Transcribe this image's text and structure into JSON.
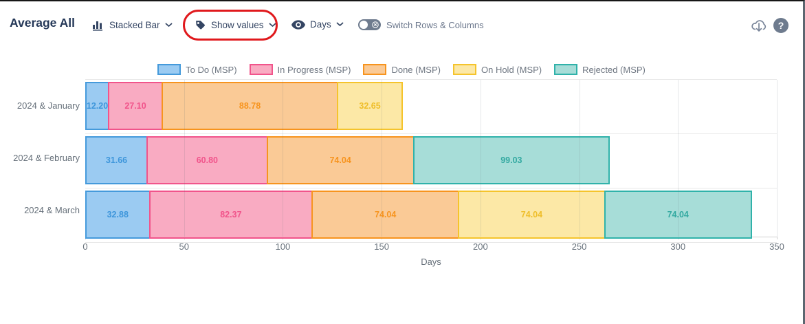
{
  "header": {
    "title": "Average All",
    "controls": [
      {
        "id": "chart-type",
        "label": "Stacked Bar",
        "icon": "bar-chart-icon"
      },
      {
        "id": "show-values",
        "label": "Show values",
        "icon": "tag-icon",
        "annotated": true
      },
      {
        "id": "measure-unit",
        "label": "Days",
        "icon": "eye-icon"
      }
    ],
    "toggle": {
      "label": "Switch Rows & Columns",
      "state": "off"
    },
    "actions": [
      {
        "id": "export",
        "icon": "cloud-download-icon"
      },
      {
        "id": "help",
        "icon": "question-icon",
        "glyph": "?"
      }
    ]
  },
  "annotation": {
    "shape": "red-oval",
    "color": "#e0191d",
    "target": "show-values"
  },
  "chart_data": {
    "type": "bar",
    "orientation": "horizontal",
    "stacked": true,
    "grid": true,
    "legend_position": "top-center",
    "categories": [
      "2024 & January",
      "2024 & February",
      "2024 & March"
    ],
    "series": [
      {
        "name": "To Do (MSP)",
        "values": [
          12.2,
          31.66,
          32.88
        ],
        "fill": "#9BCBF2",
        "border": "#459ADB",
        "label_color": "#3E96DB"
      },
      {
        "name": "In Progress (MSP)",
        "values": [
          27.1,
          60.8,
          82.37
        ],
        "fill": "#F9ABC2",
        "border": "#F1548B",
        "label_color": "#F1548B"
      },
      {
        "name": "Done (MSP)",
        "values": [
          88.78,
          74.04,
          74.04
        ],
        "fill": "#FACA96",
        "border": "#F7941E",
        "label_color": "#F7941E"
      },
      {
        "name": "On Hold (MSP)",
        "values": [
          32.65,
          null,
          74.04
        ],
        "fill": "#FCE8A6",
        "border": "#F5C42C",
        "label_color": "#EFBE2A"
      },
      {
        "name": "Rejected (MSP)",
        "values": [
          null,
          99.03,
          74.04
        ],
        "fill": "#A7DDD8",
        "border": "#30B2AA",
        "label_color": "#33A9A1"
      }
    ],
    "totals": [
      160.73,
      265.53,
      337.37
    ],
    "xlabel": "Days",
    "xlim": [
      0,
      350
    ],
    "xticks": [
      0,
      50,
      100,
      150,
      200,
      250,
      300,
      350
    ],
    "value_labels": "shown",
    "value_format": "0.00"
  }
}
